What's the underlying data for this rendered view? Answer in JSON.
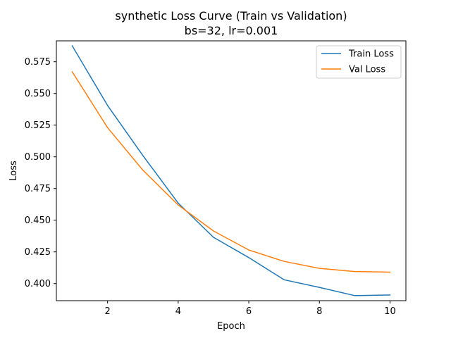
{
  "chart_data": {
    "type": "line",
    "title": "synthetic Loss Curve (Train vs Validation)",
    "subtitle": "bs=32, lr=0.001",
    "xlabel": "Epoch",
    "ylabel": "Loss",
    "x": [
      1,
      2,
      3,
      4,
      5,
      6,
      7,
      8,
      9,
      10
    ],
    "xlim": [
      0.55,
      10.45
    ],
    "ylim": [
      0.3865,
      0.5915
    ],
    "xticks": [
      2,
      4,
      6,
      8,
      10
    ],
    "xtick_labels": [
      "2",
      "4",
      "6",
      "8",
      "10"
    ],
    "yticks": [
      0.4,
      0.425,
      0.45,
      0.475,
      0.5,
      0.525,
      0.55,
      0.575
    ],
    "ytick_labels": [
      "0.400",
      "0.425",
      "0.450",
      "0.475",
      "0.500",
      "0.525",
      "0.550",
      "0.575"
    ],
    "grid": false,
    "legend_position": "top-right",
    "series": [
      {
        "name": "Train Loss",
        "color": "#1f77b4",
        "values": [
          0.5875,
          0.5405,
          0.501,
          0.4635,
          0.4365,
          0.4205,
          0.403,
          0.397,
          0.3905,
          0.391
        ]
      },
      {
        "name": "Val Loss",
        "color": "#ff7f0e",
        "values": [
          0.567,
          0.523,
          0.4895,
          0.462,
          0.4415,
          0.4265,
          0.4175,
          0.412,
          0.4095,
          0.409
        ]
      }
    ]
  }
}
